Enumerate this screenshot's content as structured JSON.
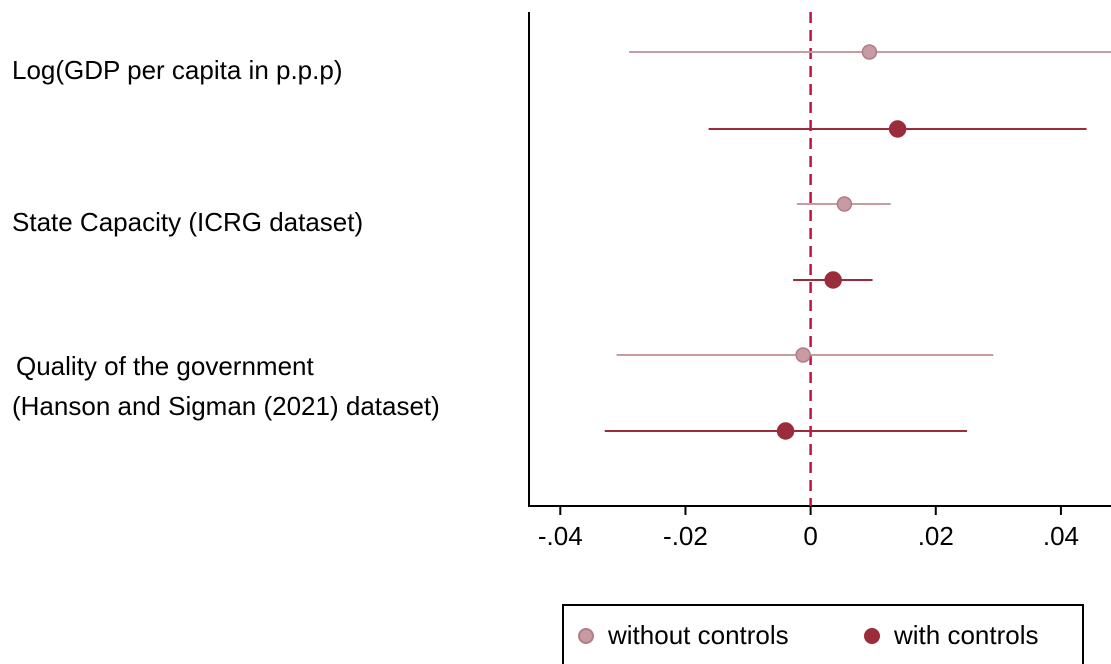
{
  "chart_data": {
    "type": "scatter",
    "subtype": "coefficient-plot",
    "xlim": [
      -0.045,
      0.048
    ],
    "ylim_note": "",
    "xticks": [
      -0.04,
      -0.02,
      0,
      0.02,
      0.04
    ],
    "xtick_labels": [
      "-.04",
      "-.02",
      "0",
      ".02",
      ".04"
    ],
    "reference_line": {
      "x": 0,
      "style": "dashed",
      "color": "#c0143c"
    },
    "categories": [
      {
        "lines": [
          "Log(GDP per capita in p.p.p)"
        ]
      },
      {
        "lines": [
          "State Capacity (ICRG dataset)"
        ]
      },
      {
        "lines": [
          "Quality of the government",
          "(Hanson and Sigman (2021) dataset)"
        ]
      }
    ],
    "series": [
      {
        "name": "without controls",
        "color": "#c89aa2",
        "points": [
          {
            "category": 0,
            "estimate": 0.0094,
            "ci": [
              -0.029,
              0.048
            ]
          },
          {
            "category": 1,
            "estimate": 0.0054,
            "ci": [
              -0.0022,
              0.0128
            ]
          },
          {
            "category": 2,
            "estimate": -0.0012,
            "ci": [
              -0.031,
              0.0292
            ]
          }
        ]
      },
      {
        "name": "with controls",
        "color": "#9b2c3c",
        "points": [
          {
            "category": 0,
            "estimate": 0.0139,
            "ci": [
              -0.0163,
              0.0441
            ]
          },
          {
            "category": 1,
            "estimate": 0.0036,
            "ci": [
              -0.0028,
              0.0099
            ]
          },
          {
            "category": 2,
            "estimate": -0.004,
            "ci": [
              -0.0329,
              0.025
            ]
          }
        ]
      }
    ]
  },
  "legend": {
    "items": [
      {
        "label": "without controls",
        "color": "#c89aa2"
      },
      {
        "label": "with controls",
        "color": "#9b2c3c"
      }
    ]
  }
}
